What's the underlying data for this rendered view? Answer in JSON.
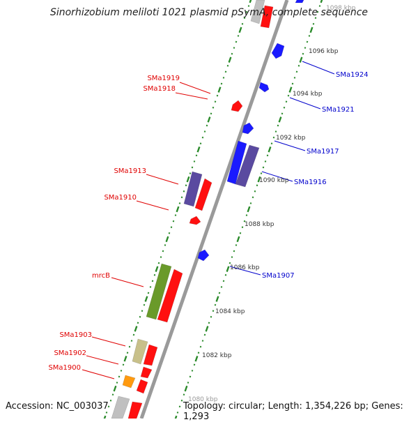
{
  "title": "Sinorhizobium meliloti 1021 plasmid pSymA, complete sequence",
  "footer": {
    "accession": "Accession: NC_003037",
    "topology": "Topology: circular; Length: 1,354,226 bp; Genes: 1,293"
  },
  "colors": {
    "backbone": "#9a9a9a",
    "tick": "#2a8a2a",
    "label_left": "#e00000",
    "label_right": "#0000cc",
    "gene_red": "#ff1010",
    "gene_blue": "#1a1aff",
    "gene_purple": "#5a4aa0",
    "gene_green": "#6a9a2a",
    "gene_khaki": "#c8c08a",
    "gene_orange": "#ff9a10",
    "gene_grey": "#c0c0c0"
  },
  "scale": [
    "1098 kbp",
    "1096 kbp",
    "1094 kbp",
    "1092 kbp",
    "1090 kbp",
    "1088 kbp",
    "1086 kbp",
    "1084 kbp",
    "1082 kbp",
    "1080 kbp"
  ],
  "left_labels": [
    "SMa1919",
    "SMa1918",
    "SMa1913",
    "SMa1910",
    "mrcB",
    "SMa1903",
    "SMa1902",
    "SMa1900"
  ],
  "right_labels": [
    "SMa1924",
    "SMa1921",
    "SMa1917",
    "SMa1916",
    "SMa1907"
  ]
}
